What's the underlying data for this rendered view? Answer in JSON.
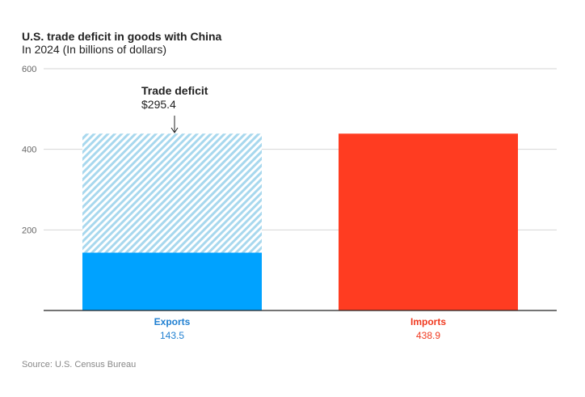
{
  "chart_data": {
    "type": "bar",
    "title": "U.S. trade deficit in goods with China",
    "subtitle": "In 2024 (In billions of dollars)",
    "categories": [
      "Exports",
      "Imports"
    ],
    "values": [
      143.5,
      438.9
    ],
    "value_labels": [
      "143.5",
      "438.9"
    ],
    "colors": [
      "#00a2ff",
      "#ff3c21"
    ],
    "label_colors": [
      "#1f7fd1",
      "#f0391f"
    ],
    "hatch_color": "#a8d8ee",
    "ylim": [
      0,
      600
    ],
    "yticks": [
      200,
      400,
      600
    ],
    "grid": true,
    "annotation": {
      "title": "Trade deficit",
      "value": "$295.4",
      "deficit": 295.4
    },
    "source": "Source: U.S. Census Bureau"
  }
}
